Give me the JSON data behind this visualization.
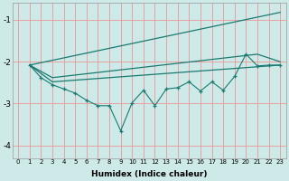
{
  "xlabel": "Humidex (Indice chaleur)",
  "bg_color": "#ceeae8",
  "grid_color": "#e8a0a0",
  "line_color": "#1a7a70",
  "xlim": [
    -0.5,
    23.5
  ],
  "ylim": [
    -4.3,
    -0.6
  ],
  "yticks": [
    -4,
    -3,
    -2,
    -1
  ],
  "xticks": [
    0,
    1,
    2,
    3,
    4,
    5,
    6,
    7,
    8,
    9,
    10,
    11,
    12,
    13,
    14,
    15,
    16,
    17,
    18,
    19,
    20,
    21,
    22,
    23
  ],
  "line1_x": [
    1,
    23
  ],
  "line1_y": [
    -2.08,
    -0.82
  ],
  "line2_x": [
    1,
    3,
    21,
    23
  ],
  "line2_y": [
    -2.08,
    -2.38,
    -1.82,
    -2.0
  ],
  "line3_x": [
    1,
    3,
    23
  ],
  "line3_y": [
    -2.08,
    -2.48,
    -2.08
  ],
  "line4_x": [
    1,
    2,
    3,
    4,
    5,
    6,
    7,
    8,
    9,
    10,
    11,
    12,
    13,
    14,
    15,
    16,
    17,
    18,
    19,
    20,
    21,
    22,
    23
  ],
  "line4_y": [
    -2.08,
    -2.38,
    -2.55,
    -2.65,
    -2.75,
    -2.92,
    -3.05,
    -3.05,
    -3.65,
    -2.98,
    -2.68,
    -3.05,
    -2.65,
    -2.62,
    -2.48,
    -2.7,
    -2.48,
    -2.68,
    -2.35,
    -1.82,
    -2.1,
    -2.08,
    -2.08
  ]
}
